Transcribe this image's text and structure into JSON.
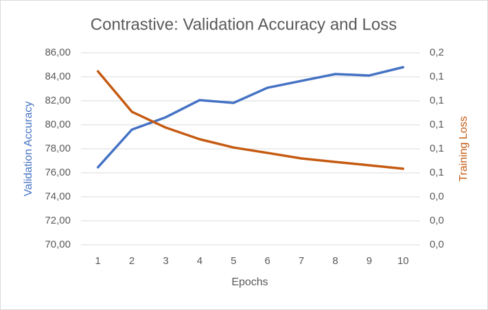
{
  "chart_data": {
    "type": "line",
    "title": "Contrastive: Validation Accuracy and Loss",
    "x_label": "Epochs",
    "y_label": "Validation Accuracy",
    "y2_label": "Training Loss",
    "categories": [
      "1",
      "2",
      "3",
      "4",
      "5",
      "6",
      "7",
      "8",
      "9",
      "10"
    ],
    "series": [
      {
        "name": "Validation Accuracy",
        "color": "#4472c4",
        "axis": "y",
        "values": [
          76.46,
          79.6,
          80.63,
          82.06,
          81.83,
          83.09,
          83.66,
          84.23,
          84.11,
          84.8
        ]
      },
      {
        "name": "Training Loss",
        "color": "#c55a11",
        "axis": "y2",
        "values": [
          0.1446,
          0.1109,
          0.0977,
          0.088,
          0.0811,
          0.0766,
          0.072,
          0.0691,
          0.0663,
          0.0634
        ]
      }
    ],
    "ylim": [
      70,
      86
    ],
    "yticks": [
      {
        "value": 70,
        "label": "70,00"
      },
      {
        "value": 72,
        "label": "72,00"
      },
      {
        "value": 74,
        "label": "74,00"
      },
      {
        "value": 76,
        "label": "76,00"
      },
      {
        "value": 78,
        "label": "78,00"
      },
      {
        "value": 80,
        "label": "80,00"
      },
      {
        "value": 82,
        "label": "82,00"
      },
      {
        "value": 84,
        "label": "84,00"
      },
      {
        "value": 86,
        "label": "86,00"
      }
    ],
    "y2lim": [
      0,
      0.16
    ],
    "y2ticks": [
      {
        "value": 0,
        "label": "0,0"
      },
      {
        "value": 0.02,
        "label": "0,0"
      },
      {
        "value": 0.04,
        "label": "0,0"
      },
      {
        "value": 0.06,
        "label": "0,1"
      },
      {
        "value": 0.08,
        "label": "0,1"
      },
      {
        "value": 0.1,
        "label": "0,1"
      },
      {
        "value": 0.12,
        "label": "0,1"
      },
      {
        "value": 0.14,
        "label": "0,1"
      },
      {
        "value": 0.16,
        "label": "0,2"
      }
    ],
    "grid": true
  }
}
